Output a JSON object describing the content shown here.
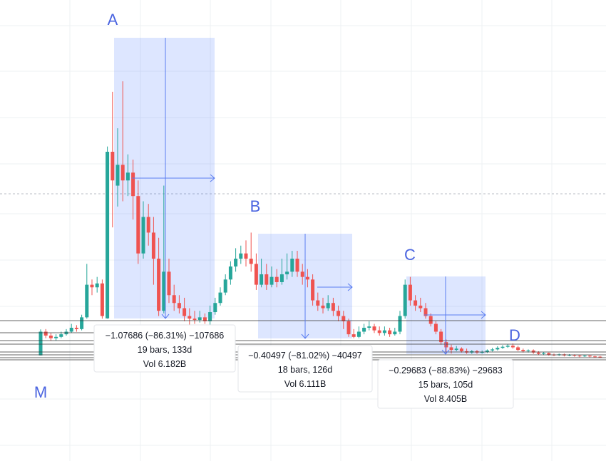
{
  "chart_data": {
    "type": "candlestick",
    "up_color": "#26a69a",
    "down_color": "#ef5350",
    "ylim": [
      -0.376,
      1.392
    ],
    "open": [
      0.029,
      0.12,
      0.105,
      0.095,
      0.1,
      0.11,
      0.12,
      0.135,
      0.13,
      0.175,
      0.3,
      0.29,
      0.305,
      0.171,
      0.81,
      0.68,
      0.76,
      0.7,
      0.73,
      0.64,
      0.42,
      0.56,
      0.5,
      0.4,
      0.2,
      0.35,
      0.26,
      0.23,
      0.21,
      0.18,
      0.17,
      0.165,
      0.175,
      0.16,
      0.195,
      0.23,
      0.27,
      0.32,
      0.37,
      0.4,
      0.42,
      0.4,
      0.38,
      0.3,
      0.34,
      0.3,
      0.33,
      0.31,
      0.34,
      0.35,
      0.4,
      0.35,
      0.33,
      0.32,
      0.24,
      0.22,
      0.21,
      0.23,
      0.2,
      0.18,
      0.16,
      0.11,
      0.1,
      0.12,
      0.135,
      0.14,
      0.125,
      0.115,
      0.125,
      0.11,
      0.12,
      0.18,
      0.3,
      0.24,
      0.22,
      0.21,
      0.18,
      0.15,
      0.12,
      0.08,
      0.06,
      0.05,
      0.055,
      0.045,
      0.04,
      0.045,
      0.04,
      0.042,
      0.048,
      0.052,
      0.058,
      0.062,
      0.066,
      0.06,
      0.05,
      0.045,
      0.048,
      0.04,
      0.035,
      0.038,
      0.032,
      0.03,
      0.033,
      0.029,
      0.031,
      0.028,
      0.026,
      0.028,
      0.025,
      0.024
    ],
    "high": [
      0.129,
      0.13,
      0.115,
      0.11,
      0.12,
      0.13,
      0.15,
      0.145,
      0.185,
      0.38,
      0.32,
      0.33,
      0.32,
      0.83,
      1.04,
      0.9,
      1.08,
      0.8,
      0.78,
      0.7,
      0.62,
      0.61,
      0.56,
      0.48,
      0.68,
      0.4,
      0.3,
      0.26,
      0.25,
      0.21,
      0.2,
      0.2,
      0.19,
      0.22,
      0.25,
      0.29,
      0.34,
      0.39,
      0.44,
      0.45,
      0.47,
      0.5,
      0.42,
      0.4,
      0.38,
      0.37,
      0.36,
      0.4,
      0.42,
      0.43,
      0.43,
      0.38,
      0.36,
      0.34,
      0.27,
      0.25,
      0.26,
      0.25,
      0.22,
      0.2,
      0.17,
      0.13,
      0.14,
      0.15,
      0.16,
      0.15,
      0.14,
      0.14,
      0.135,
      0.135,
      0.2,
      0.32,
      0.33,
      0.26,
      0.25,
      0.23,
      0.19,
      0.16,
      0.13,
      0.09,
      0.07,
      0.065,
      0.06,
      0.055,
      0.05,
      0.05,
      0.048,
      0.052,
      0.058,
      0.064,
      0.068,
      0.072,
      0.075,
      0.066,
      0.055,
      0.052,
      0.052,
      0.045,
      0.042,
      0.04,
      0.036,
      0.036,
      0.036,
      0.034,
      0.033,
      0.031,
      0.031,
      0.03,
      0.028,
      0.027
    ],
    "low": [
      0.029,
      0.095,
      0.085,
      0.085,
      0.095,
      0.105,
      0.115,
      0.12,
      0.125,
      0.17,
      0.26,
      0.27,
      0.17,
      0.17,
      0.52,
      0.6,
      0.62,
      0.64,
      0.55,
      0.38,
      0.4,
      0.45,
      0.3,
      0.18,
      0.19,
      0.23,
      0.2,
      0.19,
      0.16,
      0.14,
      0.15,
      0.155,
      0.15,
      0.145,
      0.185,
      0.22,
      0.26,
      0.3,
      0.35,
      0.38,
      0.37,
      0.35,
      0.28,
      0.29,
      0.28,
      0.29,
      0.29,
      0.3,
      0.32,
      0.33,
      0.33,
      0.3,
      0.29,
      0.22,
      0.2,
      0.19,
      0.2,
      0.18,
      0.16,
      0.13,
      0.1,
      0.095,
      0.095,
      0.11,
      0.125,
      0.115,
      0.105,
      0.105,
      0.1,
      0.105,
      0.11,
      0.17,
      0.22,
      0.2,
      0.195,
      0.17,
      0.14,
      0.11,
      0.07,
      0.04,
      0.036,
      0.045,
      0.04,
      0.035,
      0.035,
      0.035,
      0.036,
      0.038,
      0.044,
      0.048,
      0.054,
      0.058,
      0.055,
      0.045,
      0.04,
      0.04,
      0.035,
      0.03,
      0.03,
      0.028,
      0.026,
      0.027,
      0.025,
      0.026,
      0.024,
      0.022,
      0.023,
      0.021,
      0.02,
      0.019
    ],
    "close": [
      0.12,
      0.105,
      0.095,
      0.1,
      0.11,
      0.12,
      0.135,
      0.13,
      0.175,
      0.3,
      0.29,
      0.305,
      0.18,
      0.81,
      0.7,
      0.76,
      0.7,
      0.73,
      0.64,
      0.42,
      0.56,
      0.5,
      0.4,
      0.2,
      0.35,
      0.26,
      0.23,
      0.21,
      0.18,
      0.17,
      0.165,
      0.175,
      0.16,
      0.195,
      0.23,
      0.27,
      0.32,
      0.37,
      0.4,
      0.42,
      0.4,
      0.38,
      0.3,
      0.34,
      0.3,
      0.33,
      0.31,
      0.34,
      0.35,
      0.4,
      0.35,
      0.33,
      0.32,
      0.24,
      0.22,
      0.21,
      0.23,
      0.2,
      0.18,
      0.16,
      0.11,
      0.1,
      0.12,
      0.135,
      0.14,
      0.125,
      0.115,
      0.125,
      0.11,
      0.12,
      0.18,
      0.3,
      0.24,
      0.22,
      0.21,
      0.18,
      0.15,
      0.12,
      0.08,
      0.06,
      0.05,
      0.055,
      0.045,
      0.04,
      0.045,
      0.04,
      0.042,
      0.048,
      0.052,
      0.058,
      0.062,
      0.066,
      0.06,
      0.05,
      0.045,
      0.048,
      0.04,
      0.035,
      0.038,
      0.032,
      0.03,
      0.033,
      0.029,
      0.031,
      0.028,
      0.026,
      0.028,
      0.025,
      0.024,
      0.022
    ],
    "annotations": [
      "A",
      "B",
      "C",
      "D",
      "M"
    ],
    "measurements": [
      {
        "change": "−1.07686 (−86.31%) −107686",
        "bars": "19 bars, 133d",
        "volume": "Vol 6.182B"
      },
      {
        "change": "−0.40497 (−81.02%) −40497",
        "bars": "18 bars, 126d",
        "volume": "Vol 6.111B"
      },
      {
        "change": "−0.29683 (−88.83%) −29683",
        "bars": "15 bars, 105d",
        "volume": "Vol 8.405B"
      }
    ]
  }
}
